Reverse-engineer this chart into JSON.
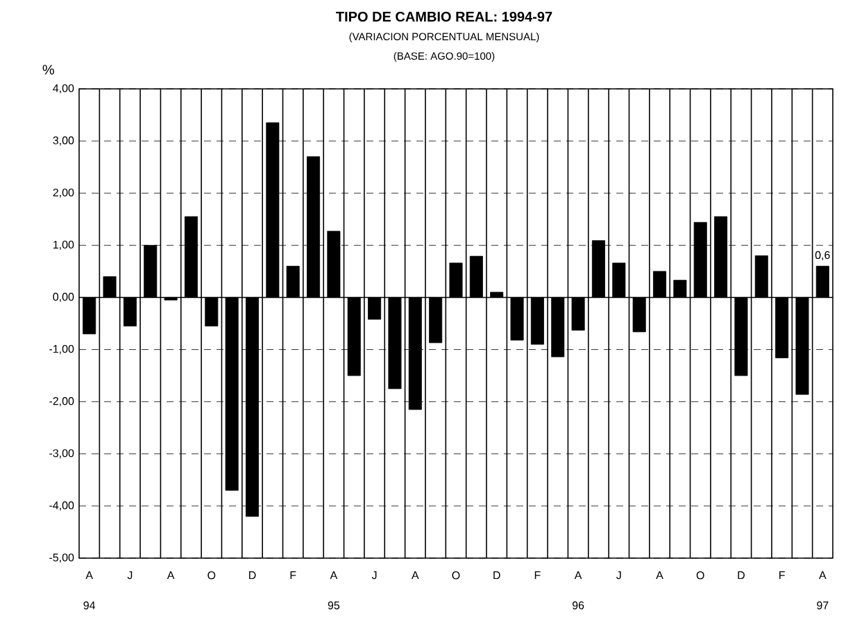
{
  "chart_data": {
    "type": "bar",
    "title": "TIPO DE CAMBIO REAL: 1994-97",
    "subtitle": "(VARIACION PORCENTUAL MENSUAL)",
    "ylabel": "%",
    "annotations": [
      "(BASE: AGO.90=100)",
      "94",
      "95",
      "96",
      "97"
    ],
    "categories": [
      "A",
      null,
      "J",
      null,
      "A",
      null,
      "O",
      null,
      "D",
      null,
      "F",
      null,
      "A",
      null,
      "J",
      null,
      "A",
      null,
      "O",
      null,
      "D",
      null,
      "F",
      null,
      "A",
      null,
      "J",
      null,
      "A",
      null,
      "O",
      null,
      "D",
      null,
      "F",
      null,
      "A"
    ],
    "values": [
      -0.7,
      0.4,
      -0.55,
      1.0,
      -0.05,
      1.55,
      -0.55,
      -3.7,
      -4.2,
      3.35,
      0.6,
      2.7,
      1.27,
      -1.5,
      -0.42,
      -1.75,
      -2.15,
      -0.87,
      0.66,
      0.79,
      0.1,
      -0.82,
      -0.9,
      -1.14,
      -0.63,
      1.09,
      0.66,
      -0.66,
      0.5,
      0.33,
      1.44,
      1.55,
      -1.5,
      0.8,
      -1.16,
      -1.86,
      0.6
    ],
    "value_labels": [
      null,
      null,
      null,
      null,
      null,
      null,
      null,
      null,
      null,
      null,
      null,
      null,
      null,
      null,
      null,
      null,
      null,
      null,
      null,
      null,
      null,
      null,
      null,
      null,
      null,
      null,
      null,
      null,
      null,
      null,
      null,
      null,
      null,
      null,
      null,
      null,
      "0,6"
    ],
    "color": "#000000",
    "ylim": [
      -5,
      4
    ],
    "yticks": [
      {
        "value": -5,
        "label": "-5,00"
      },
      {
        "value": -4,
        "label": "-4,00"
      },
      {
        "value": -3,
        "label": "-3,00"
      },
      {
        "value": -2,
        "label": "-2,00"
      },
      {
        "value": -1,
        "label": "-1,00"
      },
      {
        "value": 0,
        "label": "0,00"
      },
      {
        "value": 1,
        "label": "1,00"
      },
      {
        "value": 2,
        "label": "2,00"
      },
      {
        "value": 3,
        "label": "3,00"
      },
      {
        "value": 4,
        "label": "4,00"
      }
    ],
    "grid": true
  }
}
